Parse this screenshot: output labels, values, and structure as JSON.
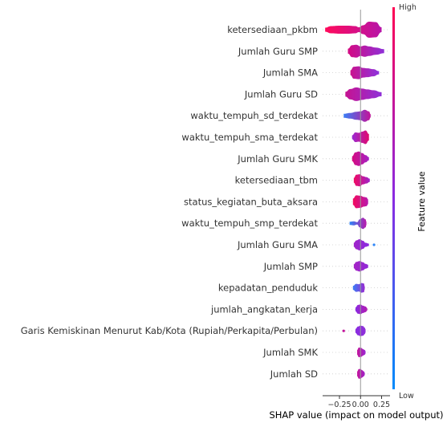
{
  "chart_data": {
    "type": "violin",
    "xlabel": "SHAP value (impact on model output)",
    "x_ticks": [
      -0.25,
      0.0,
      0.25
    ],
    "x_tick_labels": [
      "−0.25",
      "0.00",
      "0.25"
    ],
    "xlim": [
      -0.45,
      0.35
    ],
    "colorbar": {
      "title": "Feature value",
      "high_label": "High",
      "low_label": "Low",
      "high_color": "#ff0052",
      "mid_color": "#8a2be2",
      "low_color": "#008bfb"
    },
    "features": [
      {
        "name": "ketersediaan_pkbm",
        "range": [
          -0.42,
          0.25
        ],
        "color_low": "#ff0a5b",
        "color_high": "#b714a8",
        "profile": [
          [
            -0.42,
            0.25
          ],
          [
            -0.35,
            0.45
          ],
          [
            -0.25,
            0.5
          ],
          [
            -0.15,
            0.5
          ],
          [
            -0.06,
            0.45
          ],
          [
            -0.02,
            0.3
          ],
          [
            0.03,
            0.55
          ],
          [
            0.1,
            1.0
          ],
          [
            0.18,
            0.95
          ],
          [
            0.25,
            0.3
          ]
        ]
      },
      {
        "name": "Jumlah Guru SMP",
        "range": [
          -0.15,
          0.28
        ],
        "color_low": "#d40a82",
        "color_high": "#8f30d8",
        "profile": [
          [
            -0.15,
            0.3
          ],
          [
            -0.1,
            0.75
          ],
          [
            -0.05,
            0.8
          ],
          [
            0.0,
            0.6
          ],
          [
            0.05,
            0.7
          ],
          [
            0.1,
            0.6
          ],
          [
            0.18,
            0.45
          ],
          [
            0.28,
            0.25
          ]
        ]
      },
      {
        "name": "Jumlah SMA",
        "range": [
          -0.12,
          0.22
        ],
        "color_low": "#c9118e",
        "color_high": "#8e34dd",
        "profile": [
          [
            -0.12,
            0.3
          ],
          [
            -0.08,
            0.75
          ],
          [
            -0.02,
            0.8
          ],
          [
            0.03,
            0.6
          ],
          [
            0.08,
            0.55
          ],
          [
            0.15,
            0.45
          ],
          [
            0.22,
            0.2
          ]
        ]
      },
      {
        "name": "Jumlah Guru SD",
        "range": [
          -0.18,
          0.25
        ],
        "color_low": "#c61391",
        "color_high": "#8f30d8",
        "profile": [
          [
            -0.18,
            0.3
          ],
          [
            -0.12,
            0.65
          ],
          [
            -0.05,
            0.85
          ],
          [
            0.02,
            0.7
          ],
          [
            0.08,
            0.6
          ],
          [
            0.15,
            0.5
          ],
          [
            0.25,
            0.25
          ]
        ]
      },
      {
        "name": "waktu_tempuh_sd_terdekat",
        "range": [
          -0.2,
          0.12
        ],
        "color_low": "#3a7ef5",
        "color_high": "#c3139a",
        "profile": [
          [
            -0.2,
            0.25
          ],
          [
            -0.12,
            0.35
          ],
          [
            -0.05,
            0.5
          ],
          [
            0.0,
            0.55
          ],
          [
            0.05,
            0.75
          ],
          [
            0.1,
            0.55
          ],
          [
            0.12,
            0.2
          ]
        ]
      },
      {
        "name": "waktu_tempuh_sma_terdekat",
        "range": [
          -0.1,
          0.1
        ],
        "color_low": "#9a2ad2",
        "color_high": "#e00a6e",
        "profile": [
          [
            -0.1,
            0.25
          ],
          [
            -0.06,
            0.6
          ],
          [
            -0.02,
            0.55
          ],
          [
            0.02,
            0.7
          ],
          [
            0.06,
            0.85
          ],
          [
            0.1,
            0.4
          ]
        ]
      },
      {
        "name": "Jumlah Guru SMK",
        "range": [
          -0.1,
          0.1
        ],
        "color_low": "#d50c80",
        "color_high": "#a522c4",
        "profile": [
          [
            -0.1,
            0.3
          ],
          [
            -0.06,
            0.8
          ],
          [
            -0.02,
            0.9
          ],
          [
            0.02,
            0.7
          ],
          [
            0.06,
            0.45
          ],
          [
            0.1,
            0.2
          ]
        ]
      },
      {
        "name": "ketersediaan_tbm",
        "range": [
          -0.08,
          0.11
        ],
        "color_low": "#f00a63",
        "color_high": "#a023c8",
        "profile": [
          [
            -0.08,
            0.3
          ],
          [
            -0.05,
            0.7
          ],
          [
            -0.01,
            0.75
          ],
          [
            0.03,
            0.5
          ],
          [
            0.07,
            0.4
          ],
          [
            0.11,
            0.2
          ]
        ]
      },
      {
        "name": "status_kegiatan_buta_aksara",
        "range": [
          -0.09,
          0.09
        ],
        "color_low": "#f20a5f",
        "color_high": "#b81aad",
        "profile": [
          [
            -0.09,
            0.4
          ],
          [
            -0.05,
            0.8
          ],
          [
            0.0,
            0.75
          ],
          [
            0.04,
            0.6
          ],
          [
            0.07,
            0.55
          ],
          [
            0.09,
            0.3
          ]
        ]
      },
      {
        "name": "waktu_tempuh_smp_terdekat",
        "range": [
          -0.13,
          0.07
        ],
        "color_low": "#2f86f7",
        "color_high": "#b919aa",
        "profile": [
          [
            -0.13,
            0.2
          ],
          [
            -0.08,
            0.25
          ],
          [
            -0.04,
            0.15
          ],
          [
            -0.01,
            0.5
          ],
          [
            0.03,
            0.7
          ],
          [
            0.06,
            0.5
          ],
          [
            0.07,
            0.2
          ]
        ]
      },
      {
        "name": "Jumlah Guru SMA",
        "range": [
          -0.08,
          0.1
        ],
        "color_low": "#a023c8",
        "color_high": "#8a2be2",
        "profile": [
          [
            -0.08,
            0.25
          ],
          [
            -0.05,
            0.55
          ],
          [
            -0.01,
            0.7
          ],
          [
            0.03,
            0.5
          ],
          [
            0.06,
            0.25
          ],
          [
            0.1,
            0.15
          ]
        ]
      },
      {
        "name": "Jumlah SMP",
        "range": [
          -0.08,
          0.09
        ],
        "color_low": "#a524c4",
        "color_high": "#9029d8",
        "profile": [
          [
            -0.08,
            0.25
          ],
          [
            -0.05,
            0.55
          ],
          [
            -0.01,
            0.65
          ],
          [
            0.03,
            0.5
          ],
          [
            0.06,
            0.3
          ],
          [
            0.09,
            0.2
          ]
        ]
      },
      {
        "name": "kepadatan_penduduk",
        "range": [
          -0.09,
          0.05
        ],
        "color_low": "#3a7ef5",
        "color_high": "#9a2ad2",
        "profile": [
          [
            -0.09,
            0.25
          ],
          [
            -0.05,
            0.5
          ],
          [
            -0.02,
            0.45
          ],
          [
            0.01,
            0.6
          ],
          [
            0.04,
            0.55
          ],
          [
            0.05,
            0.2
          ]
        ]
      },
      {
        "name": "jumlah_angkatan_kerja",
        "range": [
          -0.06,
          0.08
        ],
        "color_low": "#8a2be2",
        "color_high": "#b21cb0",
        "profile": [
          [
            -0.06,
            0.25
          ],
          [
            -0.03,
            0.55
          ],
          [
            0.0,
            0.6
          ],
          [
            0.03,
            0.45
          ],
          [
            0.06,
            0.35
          ],
          [
            0.08,
            0.15
          ]
        ]
      },
      {
        "name": "Garis Kemiskinan Menurut Kab/Kota (Rupiah/Perkapita/Perbulan)",
        "range": [
          -0.06,
          0.06
        ],
        "color_low": "#8a2be2",
        "color_high": "#8f30d8",
        "profile": [
          [
            -0.06,
            0.25
          ],
          [
            -0.03,
            0.55
          ],
          [
            0.0,
            0.65
          ],
          [
            0.03,
            0.6
          ],
          [
            0.05,
            0.4
          ],
          [
            0.06,
            0.2
          ]
        ]
      },
      {
        "name": "Jumlah SMK",
        "range": [
          -0.04,
          0.06
        ],
        "color_low": "#c4139c",
        "color_high": "#9a2ad2",
        "profile": [
          [
            -0.04,
            0.3
          ],
          [
            -0.02,
            0.6
          ],
          [
            0.01,
            0.55
          ],
          [
            0.03,
            0.4
          ],
          [
            0.05,
            0.3
          ],
          [
            0.06,
            0.15
          ]
        ]
      },
      {
        "name": "Jumlah SD",
        "range": [
          -0.04,
          0.05
        ],
        "color_low": "#c4139c",
        "color_high": "#a023c8",
        "profile": [
          [
            -0.04,
            0.3
          ],
          [
            -0.02,
            0.6
          ],
          [
            0.0,
            0.6
          ],
          [
            0.02,
            0.45
          ],
          [
            0.04,
            0.3
          ],
          [
            0.05,
            0.15
          ]
        ]
      }
    ],
    "outliers": [
      {
        "feature": "Jumlah Guru SMA",
        "x": 0.16,
        "color": "#2f86f7"
      },
      {
        "feature": "Garis Kemiskinan Menurut Kab/Kota (Rupiah/Perkapita/Perbulan)",
        "x": -0.2,
        "color": "#c4139c"
      }
    ]
  }
}
